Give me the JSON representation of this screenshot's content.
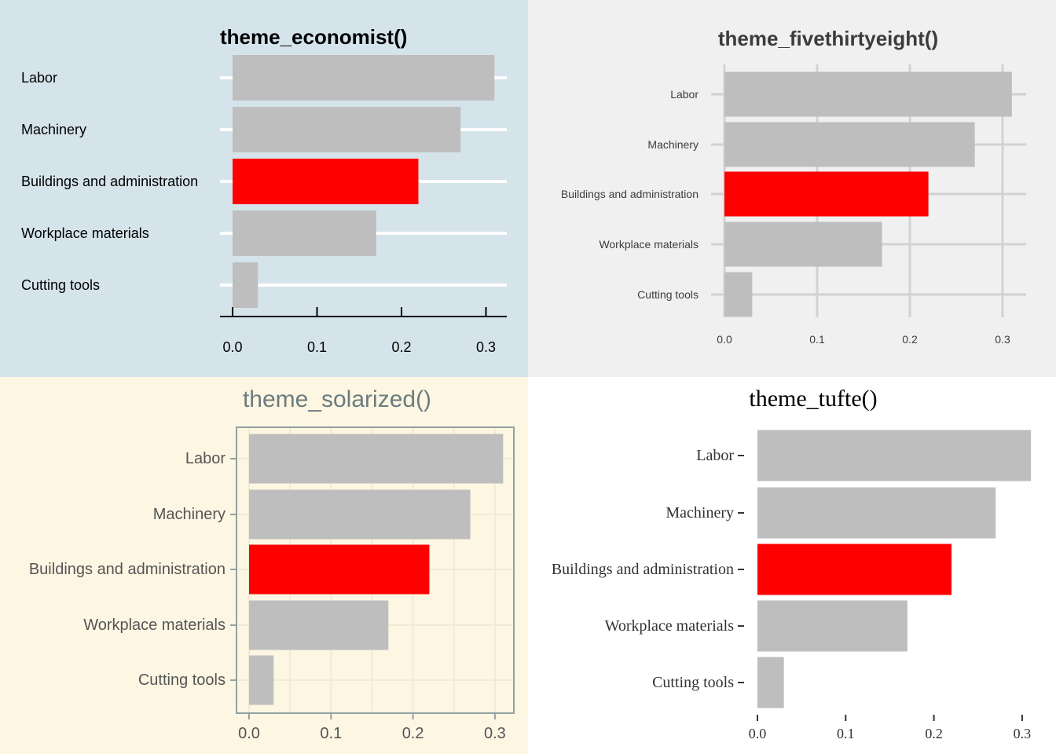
{
  "colors": {
    "bar": "#bebebe",
    "highlight": "#ff0000"
  },
  "chart_data": [
    {
      "type": "bar",
      "orientation": "horizontal",
      "title": "theme_economist()",
      "categories": [
        "Labor",
        "Machinery",
        "Buildings and administration",
        "Workplace materials",
        "Cutting tools"
      ],
      "values": [
        0.31,
        0.27,
        0.22,
        0.17,
        0.03
      ],
      "highlight_category": "Buildings and administration",
      "xticks": [
        "0.0",
        "0.1",
        "0.2",
        "0.3"
      ],
      "xlim": [
        0,
        0.325
      ],
      "grid": "horizontal",
      "background": "#d5e4eb",
      "xlabel": "",
      "ylabel": ""
    },
    {
      "type": "bar",
      "orientation": "horizontal",
      "title": "theme_fivethirtyeight()",
      "categories": [
        "Labor",
        "Machinery",
        "Buildings and administration",
        "Workplace materials",
        "Cutting tools"
      ],
      "values": [
        0.31,
        0.27,
        0.22,
        0.17,
        0.03
      ],
      "highlight_category": "Buildings and administration",
      "xticks": [
        "0.0",
        "0.1",
        "0.2",
        "0.3"
      ],
      "xlim": [
        0,
        0.325
      ],
      "grid": "both",
      "background": "#f0f0f0",
      "xlabel": "",
      "ylabel": ""
    },
    {
      "type": "bar",
      "orientation": "horizontal",
      "title": "theme_solarized()",
      "categories": [
        "Labor",
        "Machinery",
        "Buildings and administration",
        "Workplace materials",
        "Cutting tools"
      ],
      "values": [
        0.31,
        0.27,
        0.22,
        0.17,
        0.03
      ],
      "highlight_category": "Buildings and administration",
      "xticks": [
        "0.0",
        "0.1",
        "0.2",
        "0.3"
      ],
      "xlim": [
        0,
        0.325
      ],
      "grid": "both",
      "background": "#fdf6e3",
      "xlabel": "",
      "ylabel": ""
    },
    {
      "type": "bar",
      "orientation": "horizontal",
      "title": "theme_tufte()",
      "categories": [
        "Labor",
        "Machinery",
        "Buildings and administration",
        "Workplace materials",
        "Cutting tools"
      ],
      "values": [
        0.31,
        0.27,
        0.22,
        0.17,
        0.03
      ],
      "highlight_category": "Buildings and administration",
      "xticks": [
        "0.0",
        "0.1",
        "0.2",
        "0.3"
      ],
      "xlim": [
        0,
        0.325
      ],
      "grid": "none",
      "background": "#ffffff",
      "xlabel": "",
      "ylabel": ""
    }
  ]
}
